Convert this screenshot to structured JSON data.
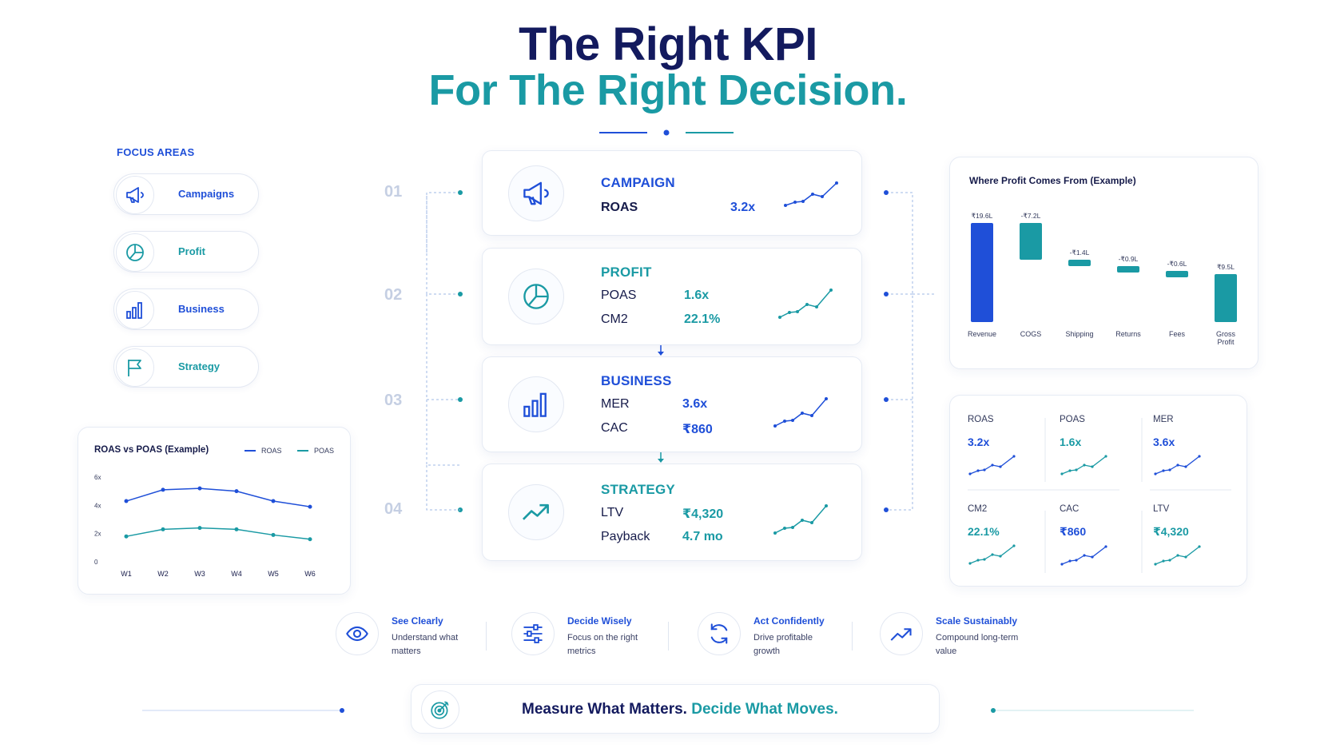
{
  "header": {
    "title_line1": "The Right KPI",
    "title_line2": "For The Right Decision."
  },
  "focus_areas": {
    "title": "FOCUS AREAS",
    "items": [
      {
        "label": "Campaigns",
        "icon": "megaphone-icon"
      },
      {
        "label": "Profit",
        "icon": "pie-chart-icon"
      },
      {
        "label": "Business",
        "icon": "bar-chart-icon"
      },
      {
        "label": "Strategy",
        "icon": "flag-icon"
      }
    ]
  },
  "kpi_cards": [
    {
      "number": "01",
      "heading": "CAMPAIGN",
      "icon": "megaphone-icon",
      "metrics": [
        {
          "name": "ROAS",
          "value": "3.2x"
        }
      ]
    },
    {
      "number": "02",
      "heading": "PROFIT",
      "icon": "pie-chart-icon",
      "metrics": [
        {
          "name": "POAS",
          "value": "1.6x"
        },
        {
          "name": "CM2",
          "value": "22.1%"
        }
      ]
    },
    {
      "number": "03",
      "heading": "BUSINESS",
      "icon": "bar-chart-icon",
      "metrics": [
        {
          "name": "MER",
          "value": "3.6x"
        },
        {
          "name": "CAC",
          "value": "₹860"
        }
      ]
    },
    {
      "number": "04",
      "heading": "STRATEGY",
      "icon": "trend-up-icon",
      "metrics": [
        {
          "name": "LTV",
          "value": "₹4,320"
        },
        {
          "name": "Payback",
          "value": "4.7 mo"
        }
      ]
    }
  ],
  "roas_chart": {
    "title": "ROAS vs POAS (Example)",
    "chart_data": {
      "type": "line",
      "title": "ROAS vs POAS (Example)",
      "categories": [
        "W1",
        "W2",
        "W3",
        "W4",
        "W5",
        "W6"
      ],
      "y_ticks": [
        "0",
        "2x",
        "4x",
        "6x"
      ],
      "ylim": [
        0,
        6
      ],
      "legend": "top-right",
      "series": [
        {
          "name": "ROAS",
          "color": "#1f4fd8",
          "values": [
            4.3,
            5.1,
            5.2,
            5.0,
            4.3,
            3.9
          ]
        },
        {
          "name": "POAS",
          "color": "#1a9aa4",
          "values": [
            1.8,
            2.3,
            2.4,
            2.3,
            1.9,
            1.6
          ]
        }
      ]
    }
  },
  "waterfall": {
    "title": "Where Profit Comes From (Example)",
    "chart_data": {
      "type": "bar",
      "title": "Where Profit Comes From (Example)",
      "categories": [
        "Revenue",
        "COGS",
        "Shipping",
        "Returns",
        "Fees",
        "Gross Profit"
      ],
      "values": [
        19.6,
        -7.2,
        -1.4,
        -0.9,
        -0.6,
        9.5
      ],
      "value_labels": [
        "₹19.6L",
        "-₹7.2L",
        "-₹1.4L",
        "-₹0.9L",
        "-₹0.6L",
        "₹9.5L"
      ],
      "unit": "L",
      "colors": {
        "total": "#1f4fd8",
        "step": "#1a9aa4"
      }
    }
  },
  "metric_grid": [
    {
      "name": "ROAS",
      "value": "3.2x",
      "color": "#1f4fd8"
    },
    {
      "name": "POAS",
      "value": "1.6x",
      "color": "#1a9aa4"
    },
    {
      "name": "MER",
      "value": "3.6x",
      "color": "#1f4fd8"
    },
    {
      "name": "CM2",
      "value": "22.1%",
      "color": "#1a9aa4"
    },
    {
      "name": "CAC",
      "value": "₹860",
      "color": "#1f4fd8"
    },
    {
      "name": "LTV",
      "value": "₹4,320",
      "color": "#1a9aa4"
    }
  ],
  "features": [
    {
      "title": "See Clearly",
      "desc": "Understand what matters",
      "icon": "eye-icon"
    },
    {
      "title": "Decide Wisely",
      "desc": "Focus on the right metrics",
      "icon": "sliders-icon"
    },
    {
      "title": "Act Confidently",
      "desc": "Drive profitable growth",
      "icon": "refresh-icon"
    },
    {
      "title": "Scale Sustainably",
      "desc": "Compound long-term value",
      "icon": "trend-up-icon"
    }
  ],
  "footer": {
    "text_part1": "Measure What Matters.",
    "text_part2": "Decide What Moves.",
    "icon": "target-icon"
  },
  "colors": {
    "navy": "#131a5e",
    "blue": "#1f4fd8",
    "teal": "#1a9aa4"
  }
}
